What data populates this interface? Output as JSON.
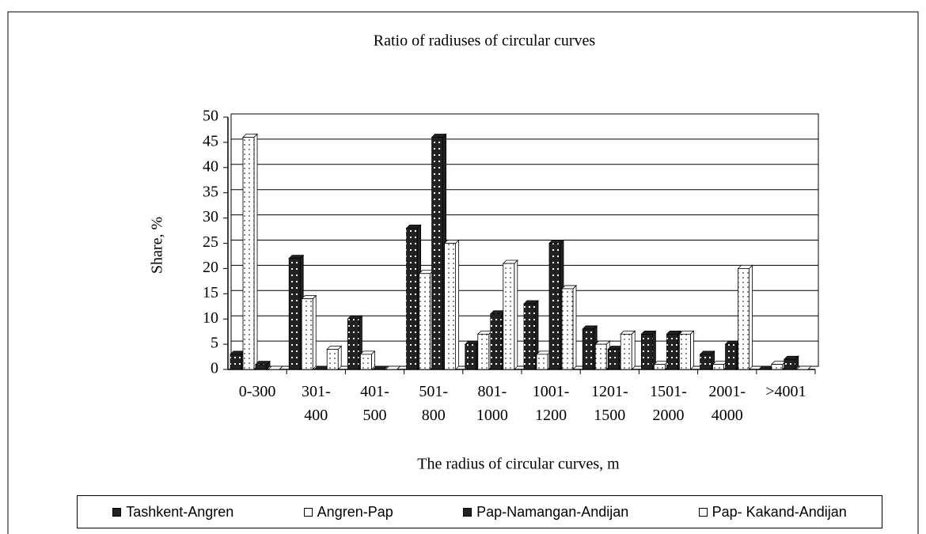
{
  "chart_data": {
    "type": "bar",
    "title": "Ratio of radiuses of circular curves",
    "x_label": "The radius of circular curves, m",
    "y_label": "Share, %",
    "categories": [
      "0-300",
      "301-400",
      "401-500",
      "501-800",
      "801-1000",
      "1001-1200",
      "1201-1500",
      "1501-2000",
      "2001-4000",
      ">4001"
    ],
    "series": [
      {
        "name": "Tashkent-Angren",
        "color": "#222222",
        "values": [
          3,
          22,
          10,
          28,
          5,
          13,
          8,
          7,
          3,
          0
        ]
      },
      {
        "name": "Angren-Pap",
        "color": "#ffffff",
        "values": [
          46,
          14,
          3,
          19,
          7,
          3,
          5,
          1,
          1,
          1
        ]
      },
      {
        "name": "Pap-Namangan-Andijan",
        "color": "#222222",
        "values": [
          1,
          0,
          0,
          46,
          11,
          25,
          4,
          7,
          5,
          2
        ]
      },
      {
        "name": "Pap- Kakand-Andijan",
        "color": "#ffffff",
        "values": [
          0,
          4,
          0,
          25,
          21,
          16,
          7,
          7,
          20,
          0
        ]
      }
    ],
    "ylim": [
      0,
      50
    ],
    "yticks": [
      0,
      5,
      10,
      15,
      20,
      25,
      30,
      35,
      40,
      45,
      50
    ],
    "grid": true,
    "legend": "bottom"
  }
}
